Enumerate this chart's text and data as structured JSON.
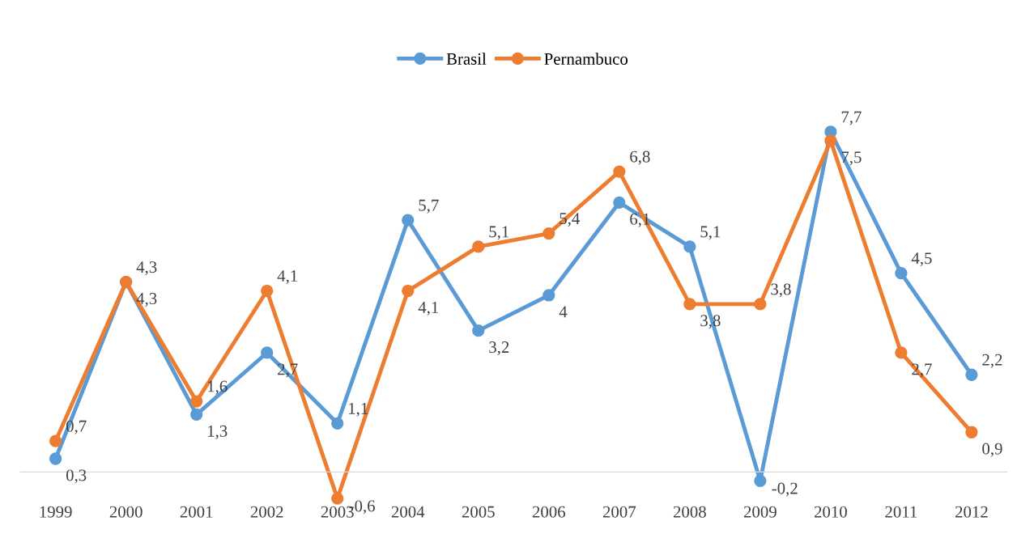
{
  "chart_data": {
    "type": "line",
    "categories": [
      "1999",
      "2000",
      "2001",
      "2002",
      "2003",
      "2004",
      "2005",
      "2006",
      "2007",
      "2008",
      "2009",
      "2010",
      "2011",
      "2012"
    ],
    "series": [
      {
        "name": "Brasil",
        "color": "#5b9bd5",
        "values": [
          0.3,
          4.3,
          1.3,
          2.7,
          1.1,
          5.7,
          3.2,
          4,
          6.1,
          5.1,
          -0.2,
          7.7,
          4.5,
          2.2
        ],
        "value_labels": [
          "0,3",
          "4,3",
          "1,3",
          "2,7",
          "1,1",
          "5,7",
          "3,2",
          "4",
          "6,1",
          "5,1",
          "-0,2",
          "7,7",
          "4,5",
          "2,2"
        ]
      },
      {
        "name": "Pernambuco",
        "color": "#ed7d31",
        "values": [
          0.7,
          4.3,
          1.6,
          4.1,
          -0.6,
          4.1,
          5.1,
          5.4,
          6.8,
          3.8,
          3.8,
          7.5,
          2.7,
          0.9
        ],
        "value_labels": [
          "0,7",
          "4,3",
          "1,6",
          "4,1",
          "-0,6",
          "4,1",
          "5,1",
          "5,4",
          "6,8",
          "3,8",
          "3,8",
          "7,5",
          "2,7",
          "0,9"
        ]
      }
    ],
    "legend": "top",
    "marker": "circle",
    "line_style": "solid",
    "grid": false
  }
}
